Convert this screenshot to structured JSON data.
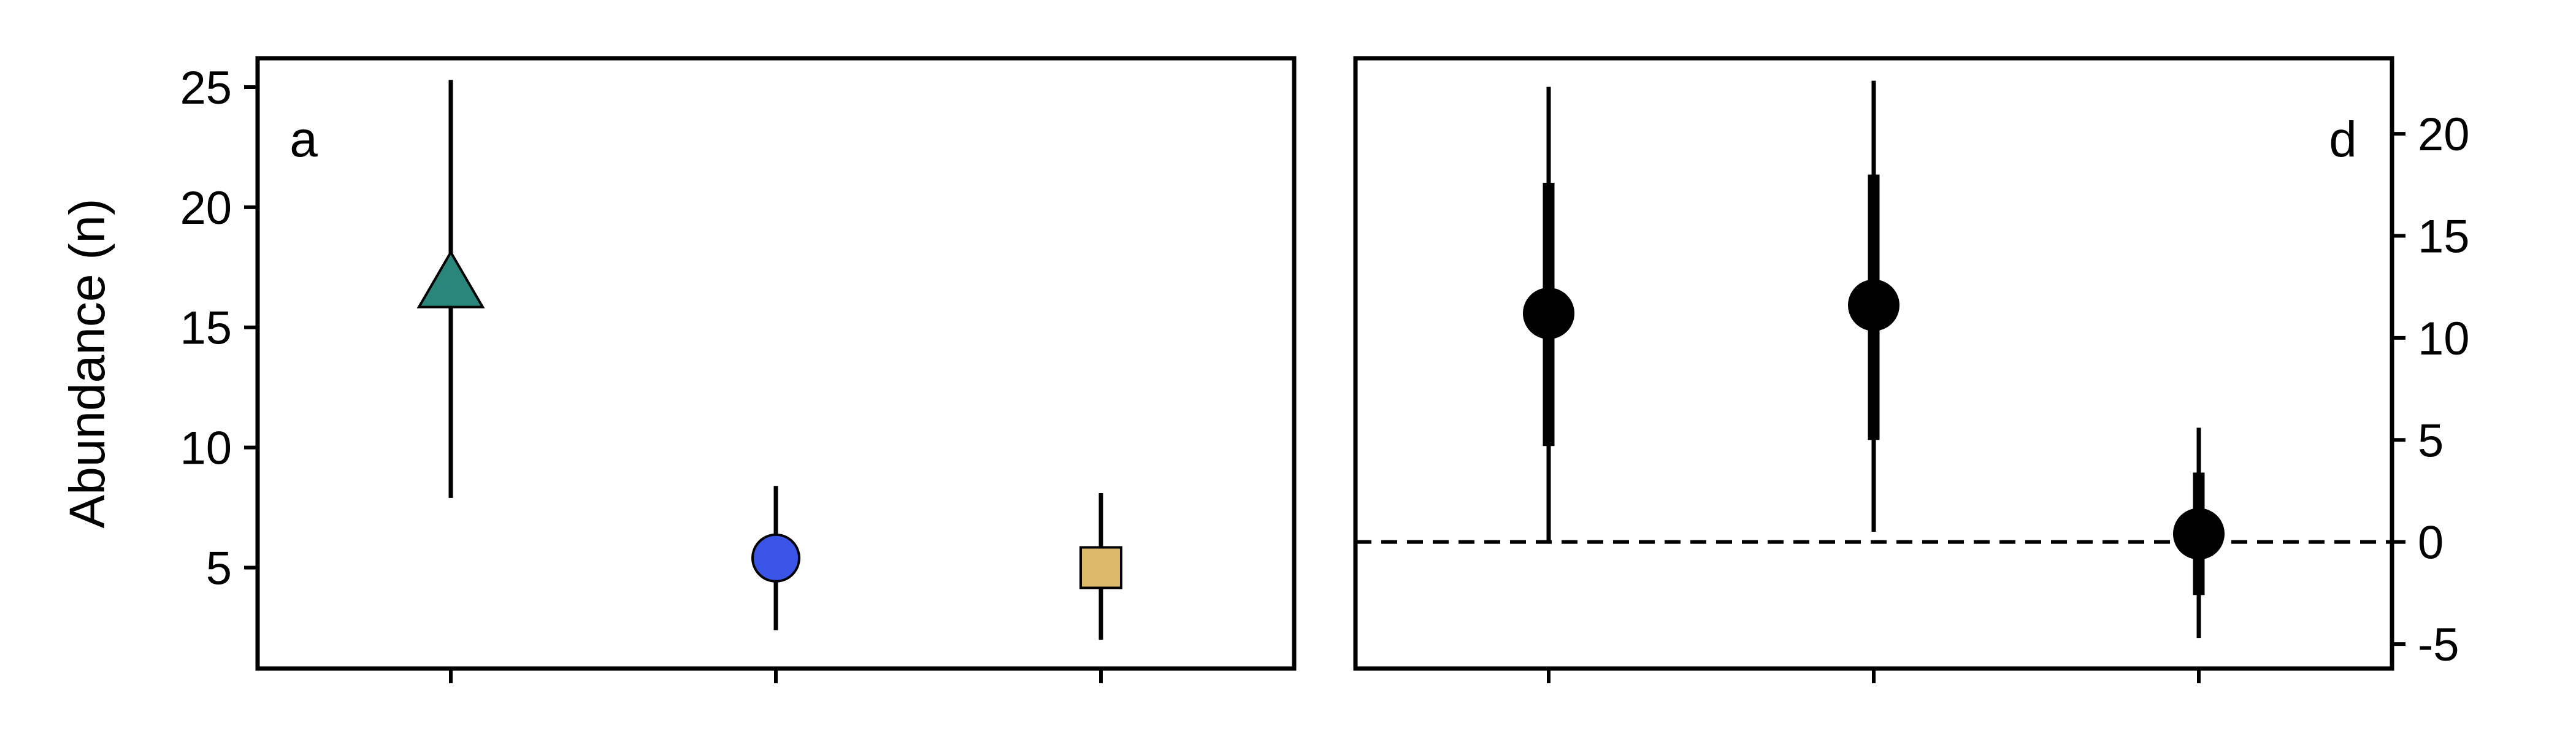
{
  "chart_data": [
    {
      "panel": "a",
      "type": "scatter",
      "ylabel": "Abundance (n)",
      "ylim": [
        0.8,
        26.2
      ],
      "yticks": [
        5,
        10,
        15,
        20,
        25
      ],
      "y_axis_side": "left",
      "x_tick_count": 3,
      "grid": false,
      "points": [
        {
          "x": 1,
          "y": 16.8,
          "err_low": 7.9,
          "err_high": 25.3,
          "marker": "triangle",
          "color": "#2a857b"
        },
        {
          "x": 2,
          "y": 5.4,
          "err_low": 2.4,
          "err_high": 8.4,
          "marker": "circle",
          "color": "#3a54e8"
        },
        {
          "x": 3,
          "y": 5.0,
          "err_low": 2.0,
          "err_high": 8.1,
          "marker": "square",
          "color": "#dcb86a"
        }
      ]
    },
    {
      "panel": "d",
      "type": "scatter",
      "ylim": [
        -6.2,
        23.7
      ],
      "yticks": [
        -5,
        0,
        5,
        10,
        15,
        20
      ],
      "y_axis_side": "right",
      "x_tick_count": 3,
      "grid": false,
      "reference_line": {
        "y": 0,
        "style": "dashed"
      },
      "points": [
        {
          "x": 1,
          "y": 11.2,
          "ci_outer": [
            0,
            22.3
          ],
          "ci_inner": [
            4.7,
            17.6
          ],
          "marker": "circle",
          "color": "#000000"
        },
        {
          "x": 2,
          "y": 11.6,
          "ci_outer": [
            0.5,
            22.6
          ],
          "ci_inner": [
            5.0,
            18.0
          ],
          "marker": "circle",
          "color": "#000000"
        },
        {
          "x": 3,
          "y": 0.4,
          "ci_outer": [
            -4.7,
            5.6
          ],
          "ci_inner": [
            -2.6,
            3.4
          ],
          "marker": "circle",
          "color": "#000000"
        }
      ]
    }
  ]
}
